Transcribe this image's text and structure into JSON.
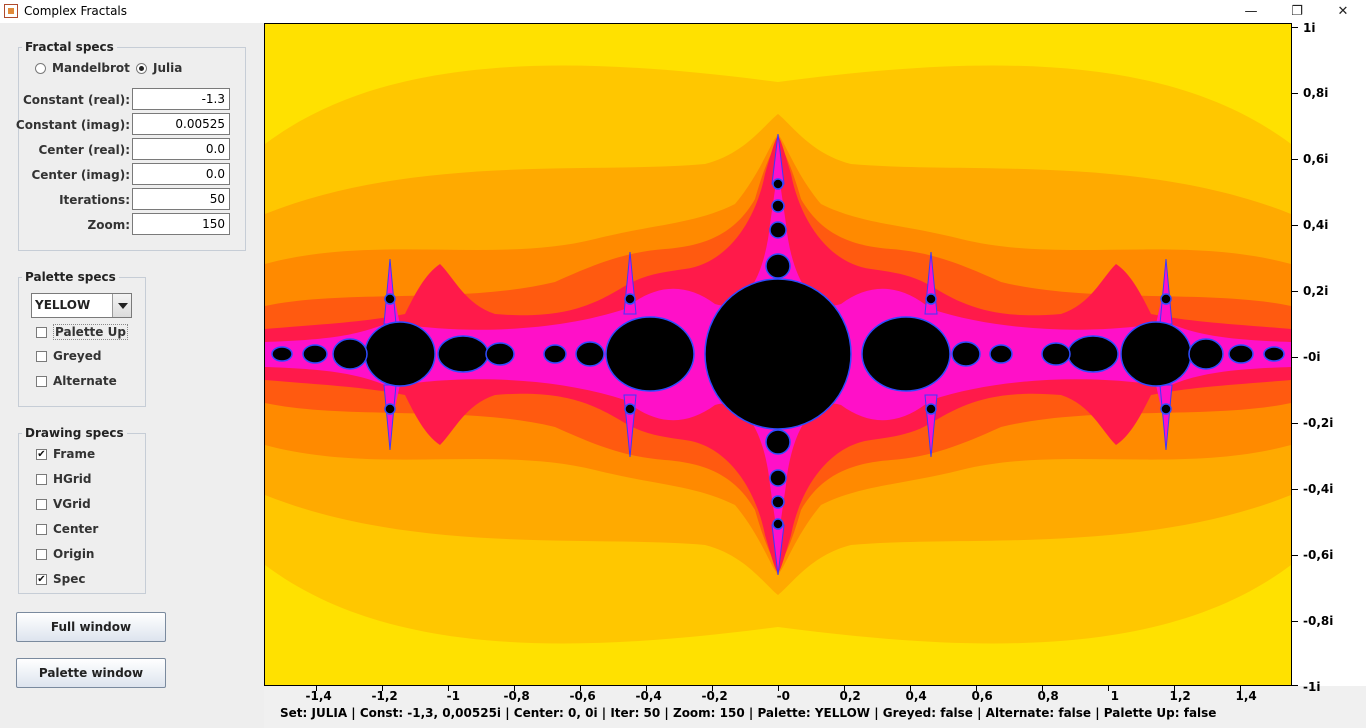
{
  "window": {
    "title": "Complex Fractals",
    "minimize": "—",
    "maximize": "❐",
    "close": "✕"
  },
  "fractal_specs": {
    "legend": "Fractal specs",
    "radio_mandelbrot": "Mandelbrot",
    "radio_julia": "Julia",
    "selected": "Julia",
    "fields": [
      {
        "label": "Constant (real):",
        "value": "-1.3"
      },
      {
        "label": "Constant (imag):",
        "value": "0.00525"
      },
      {
        "label": "Center (real):",
        "value": "0.0"
      },
      {
        "label": "Center (imag):",
        "value": "0.0"
      },
      {
        "label": "Iterations:",
        "value": "50"
      },
      {
        "label": "Zoom:",
        "value": "150"
      }
    ]
  },
  "palette_specs": {
    "legend": "Palette specs",
    "palette": "YELLOW",
    "checks": [
      {
        "label": "Palette Up",
        "checked": false
      },
      {
        "label": "Greyed",
        "checked": false
      },
      {
        "label": "Alternate",
        "checked": false
      }
    ]
  },
  "drawing_specs": {
    "legend": "Drawing specs",
    "checks": [
      {
        "label": "Frame",
        "checked": true
      },
      {
        "label": "HGrid",
        "checked": false
      },
      {
        "label": "VGrid",
        "checked": false
      },
      {
        "label": "Center",
        "checked": false
      },
      {
        "label": "Origin",
        "checked": false
      },
      {
        "label": "Spec",
        "checked": true
      }
    ]
  },
  "buttons": {
    "full_window": "Full window",
    "palette_window": "Palette window"
  },
  "axes": {
    "y_labels": [
      "1i",
      "0,8i",
      "0,6i",
      "0,4i",
      "0,2i",
      "-0i",
      "-0,2i",
      "-0,4i",
      "-0,6i",
      "-0,8i",
      "-1i"
    ],
    "x_labels": [
      "-1,4",
      "-1,2",
      "-1",
      "-0,8",
      "-0,6",
      "-0,4",
      "-0,2",
      "-0",
      "0,2",
      "0,4",
      "0,6",
      "0,8",
      "1",
      "1,2",
      "1,4"
    ]
  },
  "status_bar": "Set: JULIA | Const: -1,3, 0,00525i | Center: 0, 0i | Iter: 50 | Zoom: 150 | Palette: YELLOW | Greyed: false | Alternate: false | Palette Up: false",
  "colors": {
    "band1": "#ffe100",
    "band2": "#ffc700",
    "band3": "#ffaa00",
    "band4": "#ff8a00",
    "band5": "#ff5a10",
    "band6": "#ff1a4a",
    "band7": "#ff10c8",
    "edge": "#3a3aff",
    "interior": "#000000"
  }
}
